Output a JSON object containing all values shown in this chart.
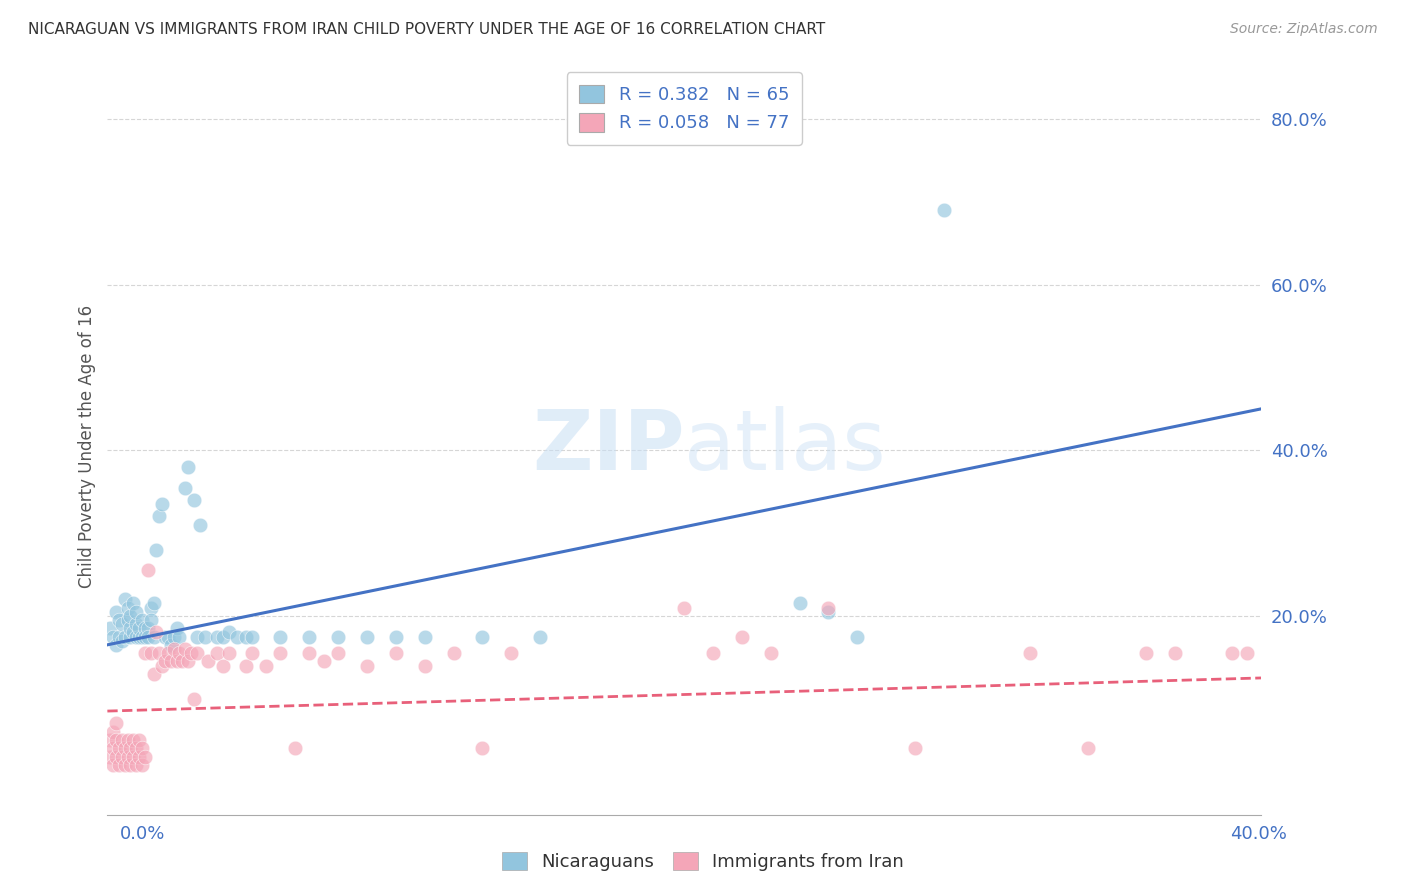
{
  "title": "NICARAGUAN VS IMMIGRANTS FROM IRAN CHILD POVERTY UNDER THE AGE OF 16 CORRELATION CHART",
  "source": "Source: ZipAtlas.com",
  "ylabel": "Child Poverty Under the Age of 16",
  "legend_label_blue": "Nicaraguans",
  "legend_label_pink": "Immigrants from Iran",
  "blue_color": "#92c5de",
  "pink_color": "#f4a6b8",
  "blue_line_color": "#4472c4",
  "pink_line_color": "#e8607a",
  "background_color": "#ffffff",
  "grid_color": "#cccccc",
  "axis_label_color": "#4472c4",
  "x_range": [
    0.0,
    0.4
  ],
  "y_range": [
    -0.04,
    0.85
  ],
  "watermark_zip": "ZIP",
  "watermark_atlas": "atlas",
  "blue_scatter": [
    [
      0.001,
      0.185
    ],
    [
      0.002,
      0.175
    ],
    [
      0.003,
      0.165
    ],
    [
      0.003,
      0.205
    ],
    [
      0.004,
      0.175
    ],
    [
      0.004,
      0.195
    ],
    [
      0.005,
      0.17
    ],
    [
      0.005,
      0.19
    ],
    [
      0.006,
      0.175
    ],
    [
      0.006,
      0.22
    ],
    [
      0.007,
      0.195
    ],
    [
      0.007,
      0.21
    ],
    [
      0.008,
      0.175
    ],
    [
      0.008,
      0.185
    ],
    [
      0.008,
      0.2
    ],
    [
      0.009,
      0.18
    ],
    [
      0.009,
      0.215
    ],
    [
      0.01,
      0.175
    ],
    [
      0.01,
      0.19
    ],
    [
      0.01,
      0.205
    ],
    [
      0.011,
      0.175
    ],
    [
      0.011,
      0.185
    ],
    [
      0.012,
      0.195
    ],
    [
      0.012,
      0.175
    ],
    [
      0.013,
      0.185
    ],
    [
      0.013,
      0.175
    ],
    [
      0.014,
      0.185
    ],
    [
      0.014,
      0.175
    ],
    [
      0.015,
      0.21
    ],
    [
      0.015,
      0.195
    ],
    [
      0.016,
      0.175
    ],
    [
      0.016,
      0.215
    ],
    [
      0.017,
      0.28
    ],
    [
      0.018,
      0.32
    ],
    [
      0.019,
      0.335
    ],
    [
      0.02,
      0.175
    ],
    [
      0.021,
      0.175
    ],
    [
      0.022,
      0.165
    ],
    [
      0.023,
      0.175
    ],
    [
      0.024,
      0.185
    ],
    [
      0.025,
      0.175
    ],
    [
      0.027,
      0.355
    ],
    [
      0.028,
      0.38
    ],
    [
      0.03,
      0.34
    ],
    [
      0.031,
      0.175
    ],
    [
      0.032,
      0.31
    ],
    [
      0.034,
      0.175
    ],
    [
      0.038,
      0.175
    ],
    [
      0.04,
      0.175
    ],
    [
      0.042,
      0.18
    ],
    [
      0.045,
      0.175
    ],
    [
      0.048,
      0.175
    ],
    [
      0.05,
      0.175
    ],
    [
      0.06,
      0.175
    ],
    [
      0.07,
      0.175
    ],
    [
      0.08,
      0.175
    ],
    [
      0.09,
      0.175
    ],
    [
      0.1,
      0.175
    ],
    [
      0.11,
      0.175
    ],
    [
      0.13,
      0.175
    ],
    [
      0.15,
      0.175
    ],
    [
      0.24,
      0.215
    ],
    [
      0.25,
      0.205
    ],
    [
      0.26,
      0.175
    ],
    [
      0.29,
      0.69
    ]
  ],
  "pink_scatter": [
    [
      0.001,
      0.05
    ],
    [
      0.001,
      0.03
    ],
    [
      0.002,
      0.04
    ],
    [
      0.002,
      0.02
    ],
    [
      0.002,
      0.06
    ],
    [
      0.003,
      0.05
    ],
    [
      0.003,
      0.03
    ],
    [
      0.003,
      0.07
    ],
    [
      0.004,
      0.04
    ],
    [
      0.004,
      0.02
    ],
    [
      0.005,
      0.05
    ],
    [
      0.005,
      0.03
    ],
    [
      0.006,
      0.04
    ],
    [
      0.006,
      0.02
    ],
    [
      0.007,
      0.05
    ],
    [
      0.007,
      0.03
    ],
    [
      0.008,
      0.04
    ],
    [
      0.008,
      0.02
    ],
    [
      0.009,
      0.05
    ],
    [
      0.009,
      0.03
    ],
    [
      0.01,
      0.04
    ],
    [
      0.01,
      0.02
    ],
    [
      0.011,
      0.05
    ],
    [
      0.011,
      0.03
    ],
    [
      0.012,
      0.04
    ],
    [
      0.012,
      0.02
    ],
    [
      0.013,
      0.155
    ],
    [
      0.013,
      0.03
    ],
    [
      0.014,
      0.255
    ],
    [
      0.015,
      0.155
    ],
    [
      0.016,
      0.13
    ],
    [
      0.017,
      0.18
    ],
    [
      0.018,
      0.155
    ],
    [
      0.019,
      0.14
    ],
    [
      0.02,
      0.145
    ],
    [
      0.021,
      0.155
    ],
    [
      0.022,
      0.145
    ],
    [
      0.023,
      0.16
    ],
    [
      0.024,
      0.145
    ],
    [
      0.025,
      0.155
    ],
    [
      0.026,
      0.145
    ],
    [
      0.027,
      0.16
    ],
    [
      0.028,
      0.145
    ],
    [
      0.029,
      0.155
    ],
    [
      0.03,
      0.1
    ],
    [
      0.031,
      0.155
    ],
    [
      0.035,
      0.145
    ],
    [
      0.038,
      0.155
    ],
    [
      0.04,
      0.14
    ],
    [
      0.042,
      0.155
    ],
    [
      0.048,
      0.14
    ],
    [
      0.05,
      0.155
    ],
    [
      0.055,
      0.14
    ],
    [
      0.06,
      0.155
    ],
    [
      0.065,
      0.04
    ],
    [
      0.07,
      0.155
    ],
    [
      0.075,
      0.145
    ],
    [
      0.08,
      0.155
    ],
    [
      0.09,
      0.14
    ],
    [
      0.1,
      0.155
    ],
    [
      0.11,
      0.14
    ],
    [
      0.12,
      0.155
    ],
    [
      0.13,
      0.04
    ],
    [
      0.14,
      0.155
    ],
    [
      0.2,
      0.21
    ],
    [
      0.21,
      0.155
    ],
    [
      0.22,
      0.175
    ],
    [
      0.23,
      0.155
    ],
    [
      0.25,
      0.21
    ],
    [
      0.28,
      0.04
    ],
    [
      0.32,
      0.155
    ],
    [
      0.34,
      0.04
    ],
    [
      0.36,
      0.155
    ],
    [
      0.37,
      0.155
    ],
    [
      0.39,
      0.155
    ],
    [
      0.395,
      0.155
    ],
    [
      0.41,
      0.155
    ]
  ],
  "blue_line": {
    "x0": 0.0,
    "y0": 0.165,
    "x1": 0.4,
    "y1": 0.45
  },
  "pink_line": {
    "x0": 0.0,
    "y0": 0.085,
    "x1": 0.4,
    "y1": 0.125
  }
}
